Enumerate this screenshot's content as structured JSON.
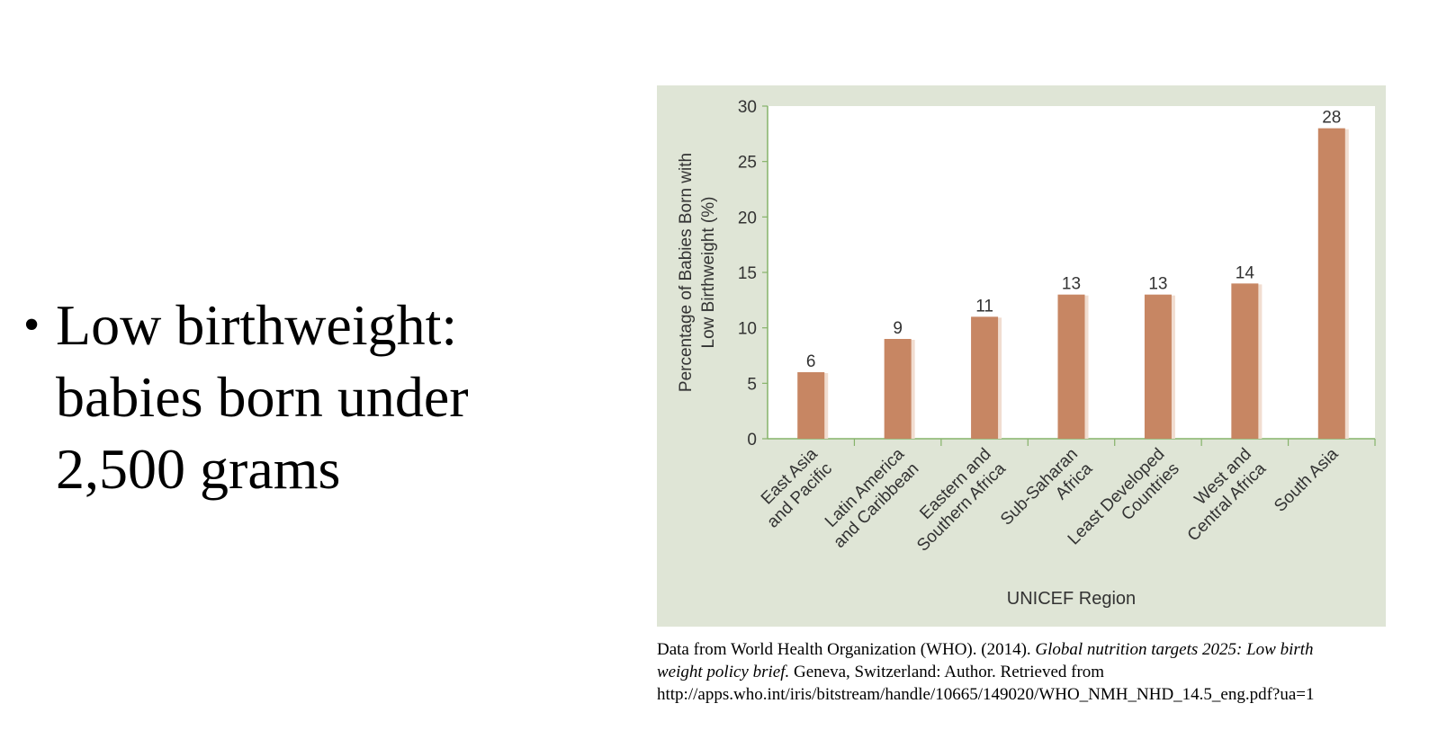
{
  "bullet": {
    "line1": "Low birthweight:",
    "line2": "babies born under",
    "line3": "2,500 grams"
  },
  "caption": {
    "part1": "Data from World Health Organization (WHO). (2014). ",
    "title_italic_a": "Global nutrition targets 2025: Low birth",
    "title_italic_b": "weight policy brief.",
    "part2": " Geneva, Switzerland: Author. Retrieved from",
    "url": "http://apps.who.int/iris/bitstream/handle/10665/149020/WHO_NMH_NHD_14.5_eng.pdf?ua=1"
  },
  "chart_data": {
    "type": "bar",
    "title": "",
    "xlabel": "UNICEF Region",
    "ylabel": [
      "Percentage of Babies Born with",
      "Low Birthweight (%)"
    ],
    "ylim": [
      0,
      30
    ],
    "yticks": [
      0,
      5,
      10,
      15,
      20,
      25,
      30
    ],
    "categories": [
      [
        "East Asia",
        "and Pacific"
      ],
      [
        "Latin America",
        "and Caribbean"
      ],
      [
        "Eastern and",
        "Southern Africa"
      ],
      [
        "Sub-Saharan",
        "Africa"
      ],
      [
        "Least Developed",
        "Countries"
      ],
      [
        "West and",
        "Central Africa"
      ],
      [
        "South Asia"
      ]
    ],
    "values": [
      6,
      9,
      11,
      13,
      13,
      14,
      28
    ],
    "data_labels": [
      "6",
      "9",
      "11",
      "13",
      "13",
      "14",
      "28"
    ],
    "grid": false,
    "legend": "none",
    "colors": {
      "panel_bg": "#dfe5d6",
      "plot_bg": "#ffffff",
      "bar": "#c78663",
      "bar_shadow": "#f1ddd0",
      "axis": "#86b36a",
      "text": "#333333"
    }
  }
}
